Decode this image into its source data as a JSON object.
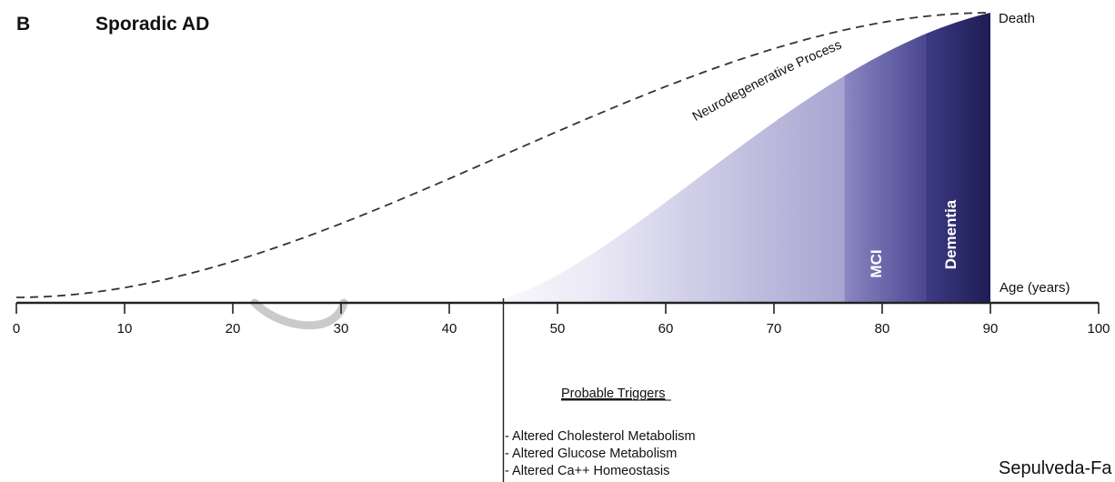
{
  "panel_letter": "B",
  "title": "Sporadic AD",
  "axis": {
    "label": "Age (years)",
    "ticks": [
      0,
      10,
      20,
      30,
      40,
      50,
      60,
      70,
      80,
      90,
      100
    ]
  },
  "curve": {
    "label": "Neurodegenerative Process",
    "start_age": 0,
    "end_age": 90,
    "end_label": "Death"
  },
  "stages": [
    {
      "label": "MCI",
      "start_age": 76.5,
      "end_age": 84
    },
    {
      "label": "Dementia",
      "start_age": 84,
      "end_age": 90
    }
  ],
  "shaded_onset_age": 43,
  "triggers": {
    "marker_age": 45,
    "heading": "Probable Triggers",
    "items": [
      "- Altered Cholesterol Metabolism",
      "- Altered Glucose Metabolism",
      "- Altered Ca++ Homeostasis"
    ]
  },
  "credit": "Sepulveda-Fa",
  "colors": {
    "light": "#e4e3f2",
    "mid": "#a9a6d2",
    "dark": "#1d1d55",
    "axis": "#222222",
    "dashed": "#333333",
    "ghost": "#c8c8c8"
  }
}
